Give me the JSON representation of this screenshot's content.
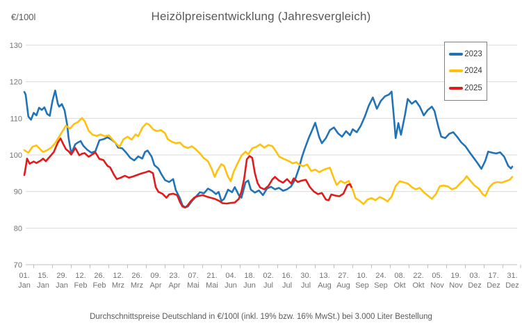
{
  "chart_data": {
    "type": "line",
    "title": "Heizölpreisentwicklung (Jahresvergleich)",
    "subtitle": "Durchschnittspreise Deutschland in €/100l (inkl. 19% bzw. 16%  MwSt.) bei 3.000 Liter Bestellung",
    "y_axis_unit": "€/100l",
    "ylim": [
      70,
      130
    ],
    "xlim": [
      1,
      365
    ],
    "grid": true,
    "legend_position": "top-right",
    "y_ticks": [
      130,
      120,
      110,
      100,
      90,
      80,
      70
    ],
    "x_ticks": [
      {
        "day": 1,
        "label_top": "01.",
        "label_bottom": "Jan"
      },
      {
        "day": 15,
        "label_top": "15.",
        "label_bottom": "Jan"
      },
      {
        "day": 29,
        "label_top": "29.",
        "label_bottom": "Jan"
      },
      {
        "day": 43,
        "label_top": "12.",
        "label_bottom": "Feb"
      },
      {
        "day": 57,
        "label_top": "26.",
        "label_bottom": "Feb"
      },
      {
        "day": 71,
        "label_top": "12.",
        "label_bottom": "Mrz"
      },
      {
        "day": 85,
        "label_top": "26.",
        "label_bottom": "Mrz"
      },
      {
        "day": 99,
        "label_top": "09.",
        "label_bottom": "Apr"
      },
      {
        "day": 113,
        "label_top": "23.",
        "label_bottom": "Apr"
      },
      {
        "day": 127,
        "label_top": "07.",
        "label_bottom": "Mai"
      },
      {
        "day": 141,
        "label_top": "21.",
        "label_bottom": "Mai"
      },
      {
        "day": 155,
        "label_top": "04.",
        "label_bottom": "Jun"
      },
      {
        "day": 169,
        "label_top": "18.",
        "label_bottom": "Jun"
      },
      {
        "day": 183,
        "label_top": "02.",
        "label_bottom": "Jul"
      },
      {
        "day": 197,
        "label_top": "16.",
        "label_bottom": "Jul"
      },
      {
        "day": 211,
        "label_top": "30.",
        "label_bottom": "Jul"
      },
      {
        "day": 225,
        "label_top": "13.",
        "label_bottom": "Aug"
      },
      {
        "day": 239,
        "label_top": "27.",
        "label_bottom": "Aug"
      },
      {
        "day": 253,
        "label_top": "10.",
        "label_bottom": "Sep"
      },
      {
        "day": 267,
        "label_top": "24.",
        "label_bottom": "Sep"
      },
      {
        "day": 281,
        "label_top": "08.",
        "label_bottom": "Okt"
      },
      {
        "day": 295,
        "label_top": "22.",
        "label_bottom": "Okt"
      },
      {
        "day": 309,
        "label_top": "05.",
        "label_bottom": "Nov"
      },
      {
        "day": 323,
        "label_top": "19.",
        "label_bottom": "Nov"
      },
      {
        "day": 337,
        "label_top": "03.",
        "label_bottom": "Dez"
      },
      {
        "day": 351,
        "label_top": "17.",
        "label_bottom": "Dez"
      },
      {
        "day": 365,
        "label_top": "31.",
        "label_bottom": "Dez"
      }
    ],
    "colors": {
      "grid": "#d9d9d9",
      "axis": "#bfbfbf",
      "tick_label": "#737373",
      "title": "#595959"
    },
    "series": [
      {
        "name": "2023",
        "color": "#2173b8",
        "x": [
          1,
          2,
          4,
          6,
          8,
          10,
          12,
          14,
          16,
          18,
          20,
          22,
          24,
          26,
          27,
          29,
          31,
          33,
          34,
          36,
          39,
          41,
          43,
          45,
          48,
          51,
          54,
          57,
          60,
          63,
          66,
          69,
          71,
          74,
          77,
          80,
          83,
          86,
          89,
          91,
          93,
          96,
          98,
          101,
          103,
          106,
          109,
          112,
          114,
          117,
          119,
          121,
          123,
          126,
          129,
          132,
          135,
          138,
          141,
          144,
          146,
          148,
          150,
          153,
          156,
          158,
          161,
          163,
          166,
          168,
          170,
          173,
          176,
          179,
          182,
          185,
          188,
          191,
          194,
          197,
          200,
          203,
          206,
          208,
          210,
          213,
          216,
          218,
          221,
          223,
          226,
          229,
          232,
          235,
          238,
          241,
          244,
          246,
          249,
          252,
          255,
          258,
          261,
          264,
          267,
          270,
          273,
          275,
          277,
          278,
          280,
          282,
          285,
          287,
          290,
          293,
          296,
          299,
          302,
          305,
          307,
          310,
          312,
          315,
          318,
          321,
          324,
          327,
          330,
          333,
          336,
          339,
          342,
          345,
          347,
          350,
          353,
          356,
          359,
          362,
          364,
          365
        ],
        "y": [
          117.2,
          116.5,
          110.5,
          109.6,
          111.5,
          110.8,
          112.9,
          112.3,
          113.0,
          111.2,
          110.7,
          114.8,
          117.6,
          114.0,
          113.2,
          113.9,
          112.2,
          108.2,
          104.7,
          100.4,
          102.9,
          103.4,
          103.8,
          102.5,
          101.4,
          100.6,
          101.0,
          104.0,
          104.3,
          104.8,
          104.2,
          103.3,
          102.0,
          101.8,
          100.6,
          99.2,
          98.5,
          99.6,
          99.0,
          100.8,
          101.2,
          99.5,
          97.2,
          96.3,
          94.9,
          93.1,
          92.6,
          93.4,
          90.4,
          88.2,
          86.2,
          85.7,
          85.9,
          87.4,
          88.6,
          89.8,
          89.5,
          90.8,
          90.2,
          89.3,
          89.9,
          87.4,
          88.0,
          90.5,
          89.8,
          91.2,
          89.0,
          88.3,
          92.5,
          93.0,
          90.5,
          89.7,
          90.3,
          89.0,
          90.8,
          91.3,
          90.6,
          91.0,
          90.2,
          90.6,
          91.4,
          93.3,
          96.5,
          99.3,
          101.5,
          104.5,
          107.0,
          108.8,
          104.8,
          103.2,
          104.6,
          106.8,
          107.5,
          105.9,
          105.0,
          106.5,
          105.4,
          107.0,
          106.2,
          108.0,
          110.5,
          113.5,
          115.7,
          112.6,
          114.8,
          116.0,
          116.5,
          117.3,
          109.0,
          104.6,
          108.7,
          105.5,
          111.0,
          115.3,
          114.0,
          114.8,
          113.2,
          110.8,
          112.3,
          113.2,
          112.0,
          107.5,
          105.0,
          104.6,
          105.8,
          106.2,
          104.9,
          103.4,
          102.4,
          100.8,
          99.3,
          97.8,
          96.2,
          98.5,
          100.9,
          100.6,
          100.4,
          100.7,
          99.5,
          97.0,
          96.3,
          96.8
        ]
      },
      {
        "name": "2024",
        "color": "#fec10d",
        "x": [
          1,
          4,
          7,
          10,
          12,
          15,
          18,
          21,
          24,
          27,
          29,
          32,
          35,
          38,
          41,
          44,
          46,
          49,
          52,
          55,
          58,
          61,
          64,
          67,
          70,
          72,
          75,
          78,
          81,
          84,
          86,
          89,
          92,
          94,
          97,
          100,
          103,
          106,
          108,
          111,
          114,
          117,
          120,
          123,
          126,
          129,
          132,
          135,
          138,
          141,
          143,
          145,
          148,
          150,
          153,
          155,
          157,
          160,
          163,
          166,
          168,
          171,
          174,
          177,
          180,
          183,
          186,
          189,
          191,
          194,
          196,
          199,
          201,
          204,
          206,
          209,
          212,
          215,
          218,
          221,
          224,
          227,
          229,
          232,
          234,
          237,
          240,
          243,
          246,
          248,
          251,
          254,
          257,
          260,
          263,
          266,
          269,
          272,
          275,
          278,
          281,
          284,
          287,
          290,
          293,
          296,
          299,
          302,
          305,
          308,
          311,
          314,
          317,
          320,
          323,
          326,
          329,
          331,
          334,
          337,
          340,
          343,
          345,
          348,
          351,
          354,
          357,
          360,
          363,
          365
        ],
        "y": [
          101.3,
          100.6,
          102.2,
          102.6,
          101.9,
          100.8,
          101.3,
          102.0,
          103.2,
          105.0,
          106.2,
          108.0,
          107.2,
          108.4,
          109.0,
          110.1,
          109.2,
          106.6,
          105.5,
          105.2,
          105.6,
          105.1,
          105.4,
          104.1,
          102.9,
          102.2,
          104.3,
          105.0,
          104.2,
          105.6,
          105.1,
          107.4,
          108.6,
          108.3,
          107.0,
          106.5,
          106.8,
          105.9,
          104.3,
          103.6,
          103.2,
          103.4,
          102.3,
          101.9,
          102.4,
          101.5,
          100.4,
          99.1,
          98.3,
          96.0,
          94.0,
          95.7,
          97.5,
          97.0,
          94.0,
          92.8,
          95.3,
          97.6,
          99.8,
          100.9,
          100.2,
          101.8,
          102.2,
          102.9,
          102.0,
          102.7,
          102.4,
          100.8,
          99.6,
          99.0,
          98.7,
          98.2,
          97.7,
          98.0,
          97.4,
          96.9,
          97.4,
          95.6,
          96.0,
          95.3,
          95.9,
          96.3,
          96.5,
          93.5,
          91.8,
          92.9,
          92.3,
          92.9,
          90.5,
          88.2,
          87.5,
          86.6,
          87.8,
          88.2,
          87.6,
          88.5,
          88.0,
          87.3,
          88.6,
          91.5,
          92.8,
          92.5,
          92.2,
          91.2,
          90.6,
          91.0,
          89.8,
          88.9,
          88.0,
          89.3,
          91.5,
          91.6,
          91.4,
          90.6,
          91.0,
          92.2,
          93.2,
          94.2,
          92.8,
          91.6,
          90.8,
          89.2,
          88.8,
          91.2,
          92.3,
          92.6,
          92.4,
          92.8,
          93.2,
          94.0
        ]
      },
      {
        "name": "2025",
        "color": "#e01b1b",
        "x": [
          1,
          2,
          3,
          5,
          8,
          10,
          13,
          15,
          17,
          20,
          23,
          26,
          28,
          30,
          32,
          34,
          36,
          39,
          42,
          44,
          46,
          49,
          52,
          54,
          57,
          60,
          63,
          65,
          68,
          70,
          73,
          76,
          79,
          82,
          85,
          88,
          91,
          94,
          97,
          99,
          101,
          104,
          107,
          109,
          112,
          115,
          117,
          119,
          121,
          123,
          125,
          128,
          131,
          134,
          137,
          140,
          143,
          146,
          149,
          152,
          155,
          158,
          161,
          163,
          165,
          167,
          169,
          171,
          173,
          175,
          177,
          180,
          183,
          186,
          188,
          191,
          194,
          197,
          200,
          202,
          205,
          208,
          211,
          214,
          217,
          220,
          223,
          226,
          228,
          230,
          233,
          236,
          239,
          242,
          244,
          245
        ],
        "y": [
          94.5,
          96.5,
          99.0,
          97.6,
          98.2,
          97.8,
          98.4,
          99.0,
          98.3,
          99.5,
          100.8,
          103.4,
          104.5,
          103.0,
          101.6,
          101.0,
          100.1,
          101.9,
          99.9,
          100.3,
          100.5,
          99.5,
          100.2,
          100.7,
          98.9,
          98.6,
          97.0,
          96.6,
          94.5,
          93.4,
          93.8,
          94.3,
          93.8,
          94.1,
          94.5,
          94.9,
          95.2,
          95.6,
          95.0,
          91.2,
          89.9,
          89.4,
          88.3,
          89.2,
          89.4,
          89.0,
          87.2,
          85.9,
          85.6,
          86.3,
          87.3,
          88.4,
          88.8,
          89.0,
          88.6,
          88.3,
          88.0,
          87.5,
          86.8,
          86.7,
          86.9,
          87.0,
          88.0,
          90.0,
          93.5,
          98.8,
          99.7,
          99.2,
          95.0,
          92.3,
          91.1,
          90.6,
          91.5,
          93.3,
          94.0,
          93.0,
          92.4,
          93.4,
          92.2,
          93.6,
          92.6,
          93.0,
          93.2,
          91.2,
          90.0,
          89.3,
          89.6,
          87.8,
          87.6,
          89.2,
          88.9,
          88.7,
          89.4,
          91.8,
          92.0,
          91.2
        ]
      }
    ]
  }
}
